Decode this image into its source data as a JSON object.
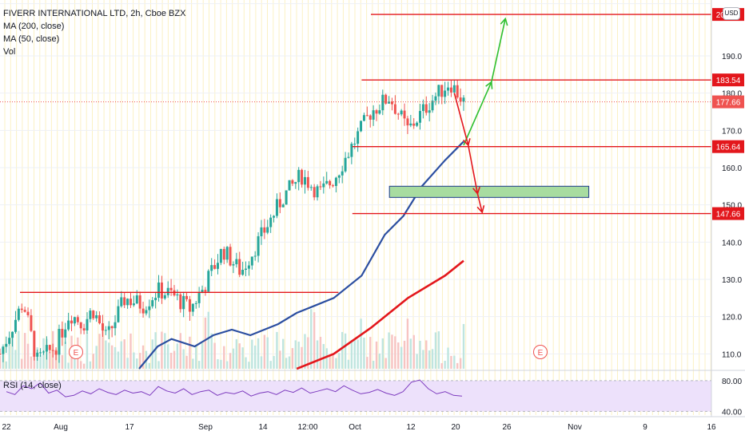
{
  "header": {
    "title": "FIVERR INTERNATIONAL LTD, 2h, Cboe BZX",
    "indicators": [
      "MA (200, close)",
      "MA (50, close)",
      "Vol"
    ],
    "currency": "USD"
  },
  "rsi_panel": {
    "label": "RSI (14, close)",
    "ticks": [
      "80.00",
      "40.00"
    ]
  },
  "colors": {
    "up": "#26a69a",
    "down": "#ef5350",
    "ma50": "#2b4ea0",
    "ma200": "#e3171c",
    "annotation_red": "#e3171c",
    "annotation_green": "#2fbf2f",
    "zone_fill": "#a8dca0",
    "zone_border": "#1f3b8a",
    "rsi_line": "#7e3cbf",
    "rsi_band": "#ede1fb"
  },
  "chart_data": {
    "type": "candlestick",
    "title": "FIVERR INTERNATIONAL LTD, 2h, Cboe BZX",
    "ylim": [
      106,
      205
    ],
    "y_ticks": [
      110,
      120,
      130,
      140,
      150,
      160,
      170,
      180,
      190
    ],
    "x_ticks": [
      "22",
      "Aug",
      "17",
      "Sep",
      "14",
      "12:00",
      "Oct",
      "12",
      "20",
      "26",
      "Nov",
      "9",
      "16"
    ],
    "price_axis_labels": [
      {
        "label": "201.12",
        "value": 201.12,
        "color": "#e3171c"
      },
      {
        "label": "183.54",
        "value": 183.54,
        "color": "#e3171c"
      },
      {
        "label": "177.66",
        "value": 177.66,
        "color": "#ef5350"
      },
      {
        "label": "165.64",
        "value": 165.64,
        "color": "#e3171c"
      },
      {
        "label": "147.66",
        "value": 147.66,
        "color": "#e3171c"
      }
    ],
    "close_series_approx": [
      {
        "t": 0.0,
        "y": 110
      },
      {
        "t": 0.05,
        "y": 124
      },
      {
        "t": 0.08,
        "y": 108
      },
      {
        "t": 0.12,
        "y": 112
      },
      {
        "t": 0.15,
        "y": 121
      },
      {
        "t": 0.18,
        "y": 118
      },
      {
        "t": 0.2,
        "y": 122
      },
      {
        "t": 0.23,
        "y": 114
      },
      {
        "t": 0.27,
        "y": 125
      },
      {
        "t": 0.31,
        "y": 123
      },
      {
        "t": 0.34,
        "y": 127
      },
      {
        "t": 0.37,
        "y": 126
      },
      {
        "t": 0.41,
        "y": 122
      },
      {
        "t": 0.44,
        "y": 128
      },
      {
        "t": 0.48,
        "y": 138
      },
      {
        "t": 0.52,
        "y": 132
      },
      {
        "t": 0.57,
        "y": 143
      },
      {
        "t": 0.61,
        "y": 152
      },
      {
        "t": 0.65,
        "y": 158
      },
      {
        "t": 0.69,
        "y": 153
      },
      {
        "t": 0.72,
        "y": 157
      },
      {
        "t": 0.76,
        "y": 166
      },
      {
        "t": 0.8,
        "y": 175
      },
      {
        "t": 0.84,
        "y": 179
      },
      {
        "t": 0.88,
        "y": 170
      },
      {
        "t": 0.93,
        "y": 178
      },
      {
        "t": 0.97,
        "y": 183
      },
      {
        "t": 1.0,
        "y": 177.66
      }
    ],
    "ma50": [
      {
        "t": 0.3,
        "y": 106
      },
      {
        "t": 0.34,
        "y": 112
      },
      {
        "t": 0.37,
        "y": 114
      },
      {
        "t": 0.42,
        "y": 112
      },
      {
        "t": 0.46,
        "y": 115
      },
      {
        "t": 0.5,
        "y": 116.5
      },
      {
        "t": 0.54,
        "y": 115
      },
      {
        "t": 0.6,
        "y": 118
      },
      {
        "t": 0.64,
        "y": 121
      },
      {
        "t": 0.68,
        "y": 123
      },
      {
        "t": 0.72,
        "y": 125
      },
      {
        "t": 0.78,
        "y": 131
      },
      {
        "t": 0.83,
        "y": 142
      },
      {
        "t": 0.87,
        "y": 147
      },
      {
        "t": 0.91,
        "y": 155
      },
      {
        "t": 0.96,
        "y": 162
      },
      {
        "t": 1.0,
        "y": 167
      }
    ],
    "ma200": [
      {
        "t": 0.64,
        "y": 106
      },
      {
        "t": 0.72,
        "y": 110
      },
      {
        "t": 0.8,
        "y": 117
      },
      {
        "t": 0.88,
        "y": 125
      },
      {
        "t": 0.96,
        "y": 131
      },
      {
        "t": 1.0,
        "y": 135
      }
    ],
    "horizontal_levels": [
      {
        "value": 201.12,
        "from_t": 0.8
      },
      {
        "value": 183.54,
        "from_t": 0.78
      },
      {
        "value": 165.64,
        "from_t": 0.76
      },
      {
        "value": 147.66,
        "from_t": 0.76
      }
    ],
    "resistance_segment": {
      "value": 126.5,
      "from_t": 0.0,
      "to_t": 0.73
    },
    "demand_zone": {
      "low": 152,
      "high": 155
    },
    "projection_arrows": [
      {
        "color": "green",
        "from": {
          "t": 1.0,
          "y": 166
        },
        "to": {
          "t": 1.06,
          "y": 183
        }
      },
      {
        "color": "green",
        "from": {
          "t": 1.06,
          "y": 183
        },
        "to": {
          "t": 1.09,
          "y": 200
        }
      },
      {
        "color": "red",
        "from": {
          "t": 0.98,
          "y": 180
        },
        "to": {
          "t": 1.01,
          "y": 166
        }
      },
      {
        "color": "red",
        "from": {
          "t": 1.01,
          "y": 166
        },
        "to": {
          "t": 1.03,
          "y": 153
        }
      },
      {
        "color": "red",
        "from": {
          "t": 1.03,
          "y": 153
        },
        "to": {
          "t": 1.04,
          "y": 148
        }
      }
    ],
    "earnings_markers": [
      "E",
      "E"
    ],
    "rsi": {
      "ylim": [
        30,
        90
      ],
      "band": [
        35,
        77
      ],
      "values": [
        62,
        58,
        70,
        66,
        74,
        60,
        64,
        55,
        57,
        63,
        59,
        66,
        61,
        58,
        64,
        60,
        62,
        57,
        69,
        63,
        60,
        66,
        58,
        62,
        64,
        57,
        61,
        59,
        63,
        56,
        60,
        62,
        58,
        64,
        61,
        67,
        60,
        63,
        66,
        62,
        70,
        64,
        59,
        61,
        65,
        60,
        57,
        62,
        75,
        78,
        66,
        59,
        62,
        57,
        56
      ]
    }
  }
}
